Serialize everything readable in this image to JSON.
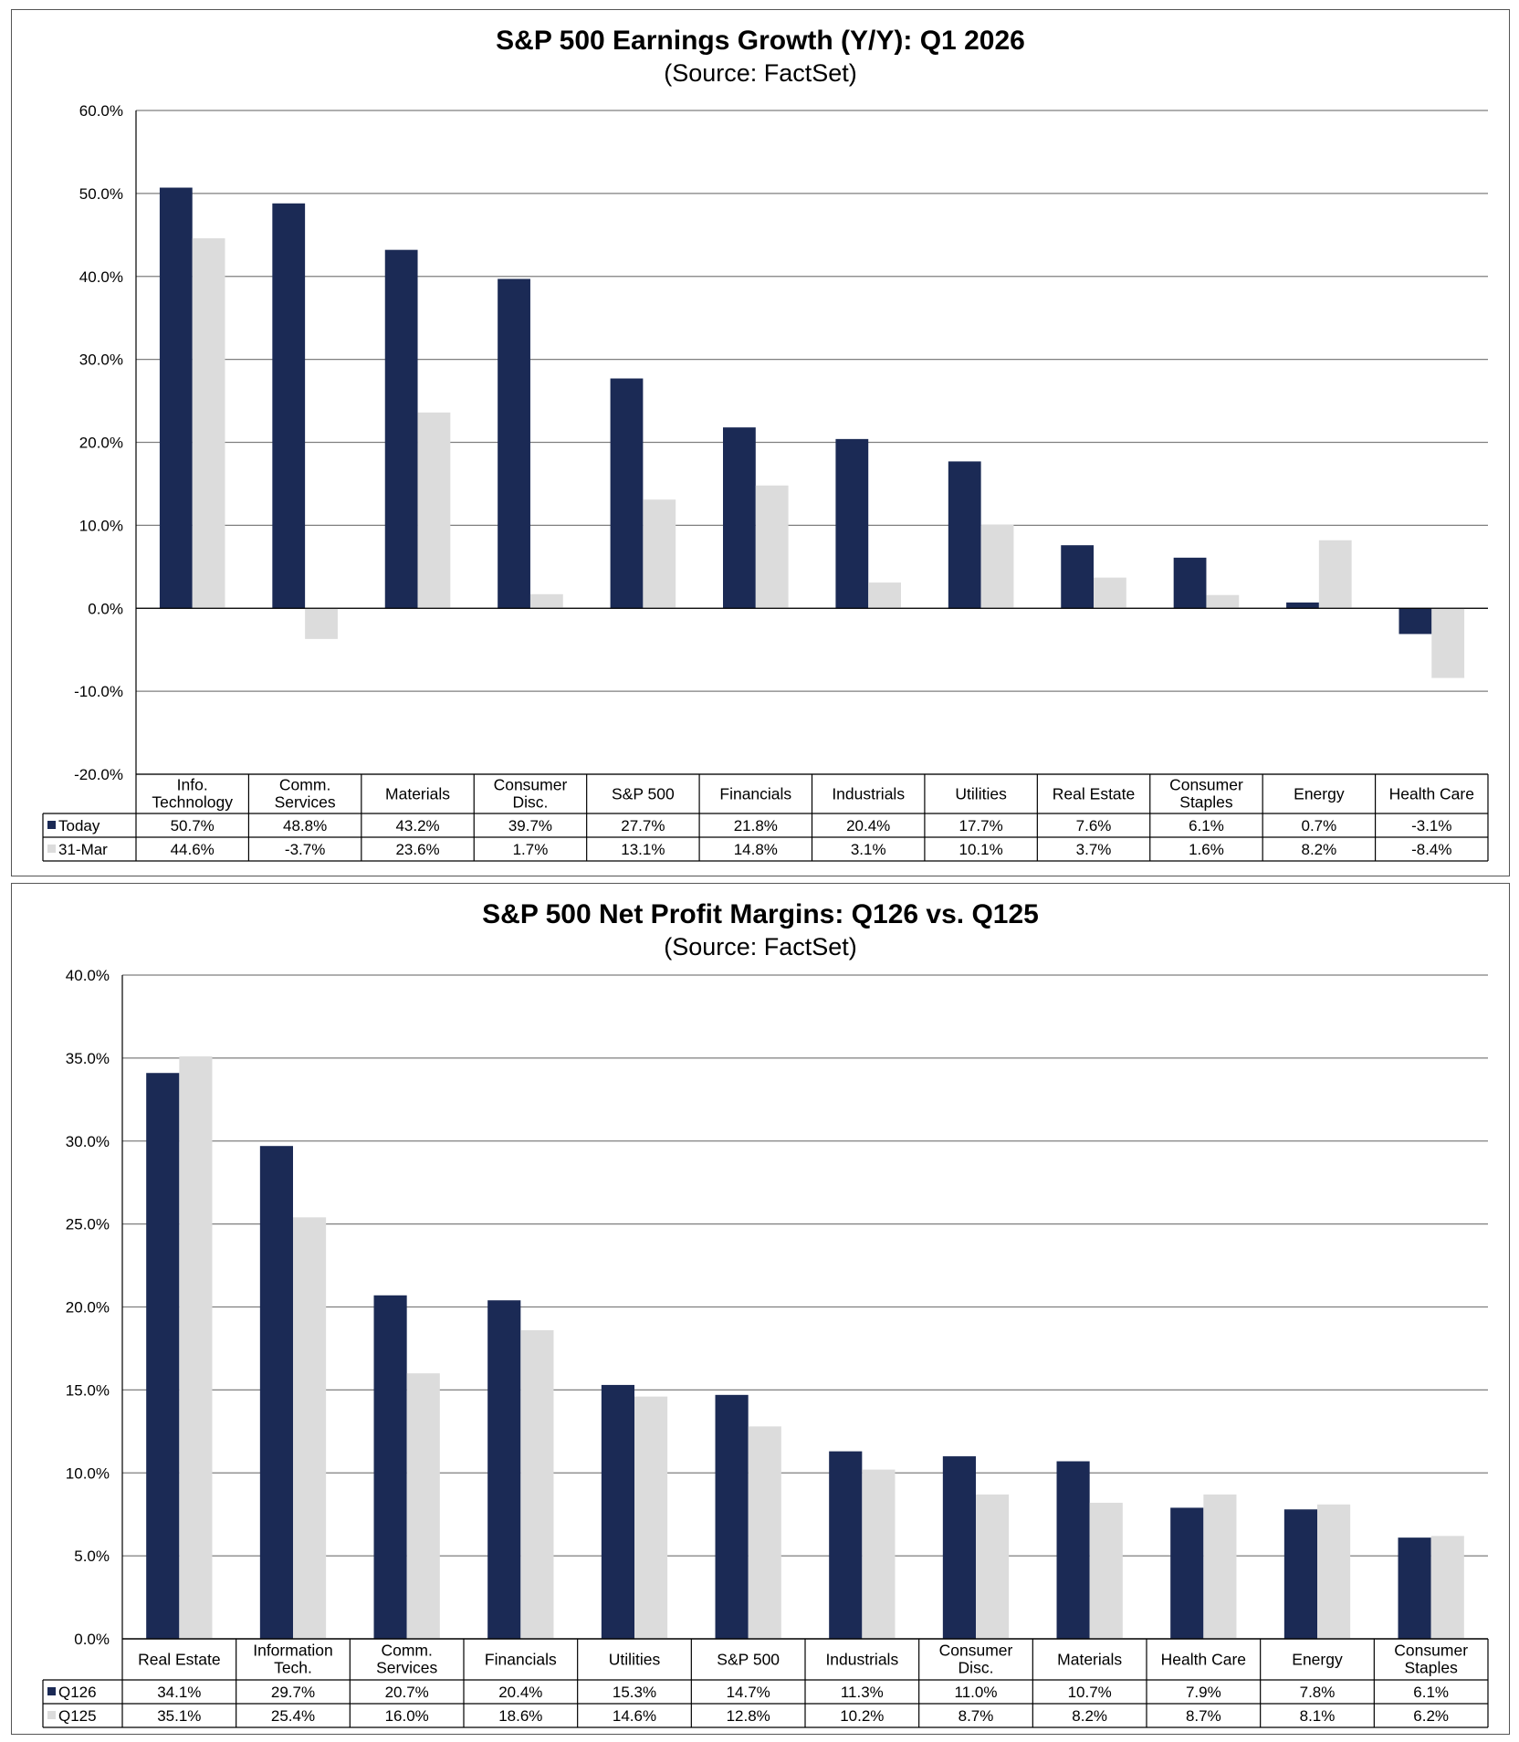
{
  "colors": {
    "series1": "#1b2a55",
    "series2": "#dcdcdc",
    "grid": "#7f7f7f"
  },
  "chart_data": [
    {
      "type": "bar",
      "title": "S&P 500 Earnings Growth (Y/Y): Q1 2026",
      "subtitle": "(Source: FactSet)",
      "categories": [
        [
          "Info.",
          "Technology"
        ],
        [
          "Comm.",
          "Services"
        ],
        [
          "Materials"
        ],
        [
          "Consumer",
          "Disc."
        ],
        [
          "S&P 500"
        ],
        [
          "Financials"
        ],
        [
          "Industrials"
        ],
        [
          "Utilities"
        ],
        [
          "Real Estate"
        ],
        [
          "Consumer",
          "Staples"
        ],
        [
          "Energy"
        ],
        [
          "Health Care"
        ]
      ],
      "series": [
        {
          "name": "Today",
          "values": [
            50.7,
            48.8,
            43.2,
            39.7,
            27.7,
            21.8,
            20.4,
            17.7,
            7.6,
            6.1,
            0.7,
            -3.1
          ],
          "labels": [
            "50.7%",
            "48.8%",
            "43.2%",
            "39.7%",
            "27.7%",
            "21.8%",
            "20.4%",
            "17.7%",
            "7.6%",
            "6.1%",
            "0.7%",
            "-3.1%"
          ]
        },
        {
          "name": "31-Mar",
          "values": [
            44.6,
            -3.7,
            23.6,
            1.7,
            13.1,
            14.8,
            3.1,
            10.1,
            3.7,
            1.6,
            8.2,
            -8.4
          ],
          "labels": [
            "44.6%",
            "-3.7%",
            "23.6%",
            "1.7%",
            "13.1%",
            "14.8%",
            "3.1%",
            "10.1%",
            "3.7%",
            "1.6%",
            "8.2%",
            "-8.4%"
          ]
        }
      ],
      "ylim": [
        -20,
        60
      ],
      "yticks": [
        60,
        50,
        40,
        30,
        20,
        10,
        0,
        -10,
        -20
      ],
      "ytick_labels": [
        "60.0%",
        "50.0%",
        "40.0%",
        "30.0%",
        "20.0%",
        "10.0%",
        "0.0%",
        "-10.0%",
        "-20.0%"
      ],
      "grid": true,
      "legend": "data table below chart"
    },
    {
      "type": "bar",
      "title": "S&P 500 Net Profit Margins: Q126 vs. Q125",
      "subtitle": "(Source: FactSet)",
      "categories": [
        [
          "Real Estate"
        ],
        [
          "Information",
          "Tech."
        ],
        [
          "Comm.",
          "Services"
        ],
        [
          "Financials"
        ],
        [
          "Utilities"
        ],
        [
          "S&P 500"
        ],
        [
          "Industrials"
        ],
        [
          "Consumer",
          "Disc."
        ],
        [
          "Materials"
        ],
        [
          "Health Care"
        ],
        [
          "Energy"
        ],
        [
          "Consumer",
          "Staples"
        ]
      ],
      "series": [
        {
          "name": "Q126",
          "values": [
            34.1,
            29.7,
            20.7,
            20.4,
            15.3,
            14.7,
            11.3,
            11.0,
            10.7,
            7.9,
            7.8,
            6.1
          ],
          "labels": [
            "34.1%",
            "29.7%",
            "20.7%",
            "20.4%",
            "15.3%",
            "14.7%",
            "11.3%",
            "11.0%",
            "10.7%",
            "7.9%",
            "7.8%",
            "6.1%"
          ]
        },
        {
          "name": "Q125",
          "values": [
            35.1,
            25.4,
            16.0,
            18.6,
            14.6,
            12.8,
            10.2,
            8.7,
            8.2,
            8.7,
            8.1,
            6.2
          ],
          "labels": [
            "35.1%",
            "25.4%",
            "16.0%",
            "18.6%",
            "14.6%",
            "12.8%",
            "10.2%",
            "8.7%",
            "8.2%",
            "8.7%",
            "8.1%",
            "6.2%"
          ]
        }
      ],
      "ylim": [
        0,
        40
      ],
      "yticks": [
        40,
        35,
        30,
        25,
        20,
        15,
        10,
        5,
        0
      ],
      "ytick_labels": [
        "40.0%",
        "35.0%",
        "30.0%",
        "25.0%",
        "20.0%",
        "15.0%",
        "10.0%",
        "5.0%",
        "0.0%"
      ],
      "grid": true,
      "legend": "data table below chart"
    }
  ]
}
